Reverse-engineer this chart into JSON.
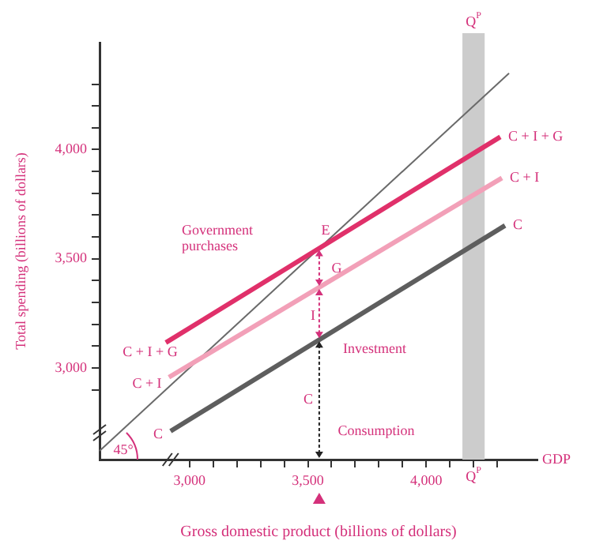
{
  "chart_data": {
    "type": "line",
    "xlabel": "Gross domestic product (billions of dollars)",
    "ylabel": "Total spending (billions of dollars)",
    "xlim": [
      2620,
      4470
    ],
    "ylim": [
      2580,
      4490
    ],
    "xticks": [
      {
        "value": 3000,
        "label": "3,000"
      },
      {
        "value": 3100,
        "label": null
      },
      {
        "value": 3200,
        "label": null
      },
      {
        "value": 3300,
        "label": null
      },
      {
        "value": 3400,
        "label": null
      },
      {
        "value": 3500,
        "label": "3,500"
      },
      {
        "value": 3600,
        "label": null
      },
      {
        "value": 3700,
        "label": null
      },
      {
        "value": 3800,
        "label": null
      },
      {
        "value": 3900,
        "label": null
      },
      {
        "value": 4000,
        "label": "4,000"
      },
      {
        "value": 4100,
        "label": null
      },
      {
        "value": 4200,
        "label": null
      },
      {
        "value": 4300,
        "label": null
      }
    ],
    "yticks": [
      {
        "value": 2900,
        "label": null
      },
      {
        "value": 3000,
        "label": "3,000"
      },
      {
        "value": 3100,
        "label": null
      },
      {
        "value": 3200,
        "label": null
      },
      {
        "value": 3300,
        "label": null
      },
      {
        "value": 3400,
        "label": null
      },
      {
        "value": 3500,
        "label": "3,500"
      },
      {
        "value": 3600,
        "label": null
      },
      {
        "value": 3700,
        "label": null
      },
      {
        "value": 3800,
        "label": null
      },
      {
        "value": 3900,
        "label": null
      },
      {
        "value": 4000,
        "label": "4,000"
      },
      {
        "value": 4100,
        "label": null
      },
      {
        "value": 4200,
        "label": null
      },
      {
        "value": 4300,
        "label": null
      }
    ],
    "series": [
      {
        "name": "C + I + G",
        "color": "#e0306a",
        "x": [
          2900,
          4313
        ],
        "values": [
          3116,
          4058
        ]
      },
      {
        "name": "C + I",
        "color": "#f2a0b8",
        "x": [
          2913,
          4320
        ],
        "values": [
          2957,
          3870
        ]
      },
      {
        "name": "C",
        "color": "#5e5e5e",
        "x": [
          2920,
          4333
        ],
        "values": [
          2710,
          3652
        ]
      },
      {
        "color": "#6a6a6a",
        "x": [
          2620,
          4350
        ],
        "values": [
          2620,
          4350
        ]
      }
    ],
    "bands": [
      {
        "axis": "x",
        "from": 4153,
        "to": 4247,
        "label": "Q$^{P}$",
        "color": "#cccccc"
      }
    ],
    "annotations": [
      "Government purchases",
      "E",
      "G",
      "I",
      "Investment",
      "C",
      "Consumption",
      "45°",
      "C",
      "C + I",
      "C + I + G",
      "GDP"
    ],
    "legend": false,
    "grid": false,
    "marker": "none",
    "line_style": "solid"
  }
}
